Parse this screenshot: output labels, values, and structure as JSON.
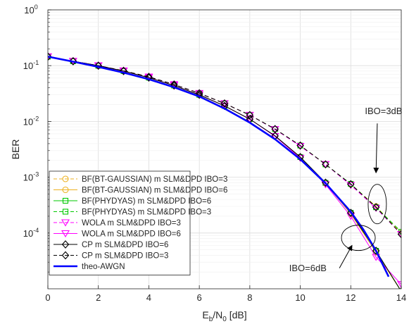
{
  "chart_data": {
    "type": "line",
    "xlabel": "E_b/N_0 [dB]",
    "xlabel_parts": {
      "E": "E",
      "b": "b",
      "slash": "/N",
      "zero": "0",
      "unit": " [dB]"
    },
    "ylabel": "BER",
    "xlim": [
      0,
      14
    ],
    "ylim": [
      1e-05,
      1
    ],
    "yscale": "log",
    "grid": true,
    "legend_position": "lower-left",
    "x_ticks": [
      "0",
      "2",
      "4",
      "6",
      "8",
      "10",
      "12",
      "14"
    ],
    "y_ticks": [
      {
        "base": "10",
        "exp": "0"
      },
      {
        "base": "10",
        "exp": "-1"
      },
      {
        "base": "10",
        "exp": "-2"
      },
      {
        "base": "10",
        "exp": "-3"
      },
      {
        "base": "10",
        "exp": "-4"
      }
    ],
    "series": [
      {
        "name": "BF(BT-GAUSSIAN) m SLM&DPD IBO=3",
        "color": "#EDB120",
        "dash": "6,4",
        "marker": "circle",
        "x": [
          0,
          1,
          2,
          3,
          4,
          5,
          6,
          7,
          8,
          9,
          10,
          11,
          12,
          13,
          14
        ],
        "y": [
          0.145,
          0.12,
          0.1,
          0.081,
          0.063,
          0.046,
          0.032,
          0.021,
          0.013,
          0.0073,
          0.0037,
          0.0017,
          0.00075,
          0.0003,
          0.0001
        ]
      },
      {
        "name": "BF(BT-GAUSSIAN) m SLM&DPD IBO=6",
        "color": "#EDB120",
        "dash": "",
        "marker": "circle",
        "x": [
          0,
          1,
          2,
          3,
          4,
          5,
          6,
          7,
          8,
          9,
          10,
          11,
          12,
          13,
          14
        ],
        "y": [
          0.145,
          0.12,
          0.1,
          0.08,
          0.061,
          0.044,
          0.03,
          0.019,
          0.011,
          0.0055,
          0.0023,
          0.00078,
          0.00022,
          4.5e-05,
          9e-06
        ]
      },
      {
        "name": "BF(PHYDYAS) m SLM&DPD IBO=6",
        "color": "#00C800",
        "dash": "",
        "marker": "square",
        "x": [
          0,
          1,
          2,
          3,
          4,
          5,
          6,
          7,
          8,
          9,
          10,
          11,
          12,
          13,
          14
        ],
        "y": [
          0.145,
          0.12,
          0.1,
          0.08,
          0.061,
          0.044,
          0.03,
          0.019,
          0.011,
          0.0055,
          0.0023,
          0.00079,
          0.00023,
          4.8e-05,
          9e-06
        ]
      },
      {
        "name": "BF(PHYDYAS) m SLM&DPD IBO=3",
        "color": "#00C800",
        "dash": "6,4",
        "marker": "square",
        "x": [
          0,
          1,
          2,
          3,
          4,
          5,
          6,
          7,
          8,
          9,
          10,
          11,
          12,
          13,
          14
        ],
        "y": [
          0.145,
          0.12,
          0.1,
          0.081,
          0.063,
          0.046,
          0.032,
          0.021,
          0.013,
          0.0073,
          0.0037,
          0.0017,
          0.00076,
          0.00029,
          0.000105
        ]
      },
      {
        "name": "WOLA m SLM&DPD IBO=3",
        "color": "#FF00FF",
        "dash": "6,4",
        "marker": "triangle-down",
        "x": [
          0,
          1,
          2,
          3,
          4,
          5,
          6,
          7,
          8,
          9,
          10,
          11,
          12,
          13,
          14
        ],
        "y": [
          0.145,
          0.12,
          0.1,
          0.081,
          0.063,
          0.046,
          0.032,
          0.021,
          0.013,
          0.0072,
          0.0036,
          0.0017,
          0.00072,
          0.00028,
          9.5e-05
        ]
      },
      {
        "name": "WOLA m SLM&DPD IBO=6",
        "color": "#FF00FF",
        "dash": "",
        "marker": "triangle-down",
        "x": [
          0,
          1,
          2,
          3,
          4,
          5,
          6,
          7,
          8,
          9,
          10,
          11,
          12,
          13,
          14
        ],
        "y": [
          0.145,
          0.12,
          0.1,
          0.08,
          0.061,
          0.044,
          0.03,
          0.019,
          0.011,
          0.0054,
          0.0022,
          0.00074,
          0.0002,
          3.7e-05,
          1.2e-05
        ]
      },
      {
        "name": "CP m SLM&DPD IBO=6",
        "color": "#000000",
        "dash": "",
        "marker": "diamond",
        "x": [
          0,
          1,
          2,
          3,
          4,
          5,
          6,
          7,
          8,
          9,
          10,
          11,
          12,
          13,
          14
        ],
        "y": [
          0.145,
          0.12,
          0.1,
          0.08,
          0.061,
          0.044,
          0.03,
          0.019,
          0.011,
          0.0055,
          0.0023,
          0.0008,
          0.00023,
          4.8e-05,
          9e-06
        ]
      },
      {
        "name": "CP m SLM&DPD IBO=3",
        "color": "#000000",
        "dash": "6,4",
        "marker": "diamond",
        "x": [
          0,
          1,
          2,
          3,
          4,
          5,
          6,
          7,
          8,
          9,
          10,
          11,
          12,
          13,
          14
        ],
        "y": [
          0.145,
          0.12,
          0.1,
          0.081,
          0.063,
          0.046,
          0.032,
          0.021,
          0.013,
          0.0073,
          0.0037,
          0.0017,
          0.00075,
          0.00029,
          9.5e-05
        ]
      },
      {
        "name": "theo-AWGN",
        "color": "#0000FF",
        "dash": "",
        "marker": "none",
        "thick": true,
        "x": [
          0,
          1,
          2,
          3,
          4,
          5,
          6,
          7,
          8,
          9,
          10,
          11,
          12,
          12.5,
          13,
          13.5
        ],
        "y": [
          0.145,
          0.118,
          0.095,
          0.075,
          0.057,
          0.041,
          0.028,
          0.017,
          0.0095,
          0.0048,
          0.0021,
          0.00078,
          0.00024,
          0.000115,
          4.8e-05,
          1.65e-05
        ]
      }
    ],
    "annotations": [
      {
        "text": "IBO=3dB",
        "ellipse": {
          "x": 13.05,
          "y": 0.00033
        },
        "text_at": {
          "x": 13.3,
          "y": 0.0135
        },
        "arrow_from": {
          "x": 13.05,
          "y": 0.0092
        },
        "arrow_to": {
          "x": 13.0,
          "y": 0.0012
        }
      },
      {
        "text": "IBO=6dB",
        "ellipse": {
          "x": 12.3,
          "y": 8.2e-05
        },
        "text_at": {
          "x": 10.3,
          "y": 2.07e-05
        },
        "arrow_from": {
          "x": 11.55,
          "y": 2.35e-05
        },
        "arrow_to": {
          "x": 12.05,
          "y": 6e-05
        }
      }
    ]
  }
}
